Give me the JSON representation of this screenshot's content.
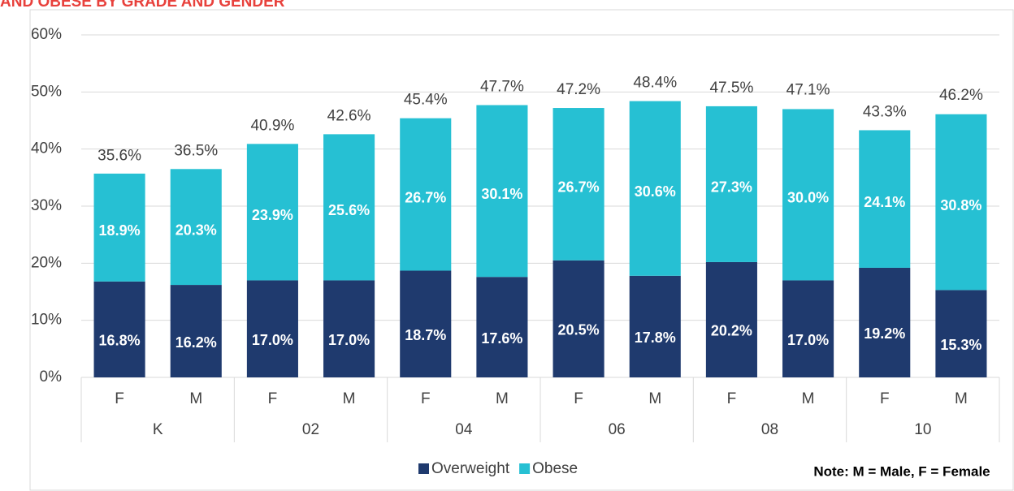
{
  "chart_data": {
    "type": "stacked_bar",
    "title": "AND OBESE BY GRADE AND GENDER",
    "categories": [
      "F",
      "M",
      "F",
      "M",
      "F",
      "M",
      "F",
      "M",
      "F",
      "M",
      "F",
      "M"
    ],
    "groups": [
      "K",
      "02",
      "04",
      "06",
      "08",
      "10"
    ],
    "series": [
      {
        "name": "Overweight",
        "color": "#1f3a6e",
        "values": [
          16.8,
          16.2,
          17.0,
          17.0,
          18.7,
          17.6,
          20.5,
          17.8,
          20.2,
          17.0,
          19.2,
          15.3
        ],
        "value_labels": [
          "16.8%",
          "16.2%",
          "17.0%",
          "17.0%",
          "18.7%",
          "17.6%",
          "20.5%",
          "17.8%",
          "20.2%",
          "17.0%",
          "19.2%",
          "15.3%"
        ]
      },
      {
        "name": "Obese",
        "color": "#26c0d3",
        "values": [
          18.9,
          20.3,
          23.9,
          25.6,
          26.7,
          30.1,
          26.7,
          30.6,
          27.3,
          30.0,
          24.1,
          30.8
        ],
        "value_labels": [
          "18.9%",
          "20.3%",
          "23.9%",
          "25.6%",
          "26.7%",
          "30.1%",
          "26.7%",
          "30.6%",
          "27.3%",
          "30.0%",
          "24.1%",
          "30.8%"
        ]
      }
    ],
    "totals": {
      "values": [
        35.6,
        36.5,
        40.9,
        42.6,
        45.4,
        47.7,
        47.2,
        48.4,
        47.5,
        47.1,
        43.3,
        46.2
      ],
      "value_labels": [
        "35.6%",
        "36.5%",
        "40.9%",
        "42.6%",
        "45.4%",
        "47.7%",
        "47.2%",
        "48.4%",
        "47.5%",
        "47.1%",
        "43.3%",
        "46.2%"
      ]
    },
    "ylim": [
      0,
      60
    ],
    "yticks": [
      {
        "value": 0,
        "label": "0%"
      },
      {
        "value": 10,
        "label": "10%"
      },
      {
        "value": 20,
        "label": "20%"
      },
      {
        "value": 30,
        "label": "30%"
      },
      {
        "value": 40,
        "label": "40%"
      },
      {
        "value": 50,
        "label": "50%"
      },
      {
        "value": 60,
        "label": "60%"
      }
    ],
    "grid": true,
    "legend": "bottom",
    "annotation": "Note: M = Male, F = Female"
  }
}
